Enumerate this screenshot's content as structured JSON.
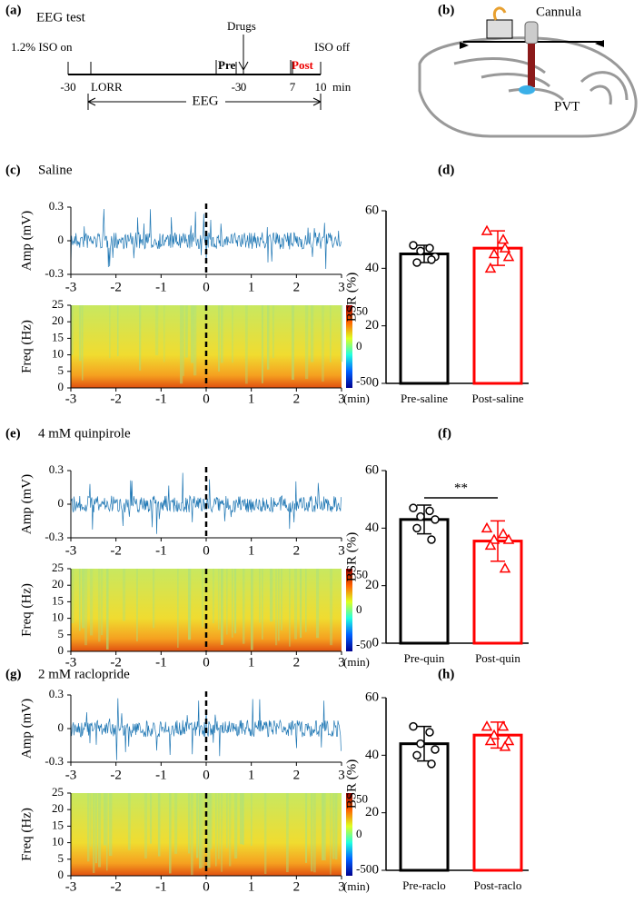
{
  "panel_a": {
    "label": "(a)",
    "title": "EEG test",
    "iso_on": "1.2% ISO on",
    "drugs": "Drugs",
    "pre": "Pre",
    "post": "Post",
    "iso_off": "ISO off",
    "ticks": [
      "-30",
      "LORR",
      "-3",
      "0",
      "7",
      "10"
    ],
    "unit": "min",
    "eeg": "EEG"
  },
  "panel_b": {
    "label": "(b)",
    "cannula": "Cannula",
    "pvt": "PVT"
  },
  "eeg_panels": [
    {
      "label": "(c)",
      "title": "Saline",
      "amp_label": "Amp (mV)",
      "ylim": [
        -0.3,
        0.3
      ],
      "amp_ticks": [
        0.3,
        0,
        -0.3
      ],
      "freq_label": "Freq (Hz)",
      "freq_lim": [
        0,
        25
      ],
      "freq_ticks": [
        0,
        5,
        10,
        15,
        20,
        25
      ],
      "color_ticks": [
        50,
        0,
        -50
      ],
      "xlim": [
        -3,
        3
      ],
      "time_ticks": [
        -3,
        -2,
        -1,
        0,
        1,
        2,
        3
      ],
      "time_unit": "(min)"
    },
    {
      "label": "(e)",
      "title": "4 mM quinpirole",
      "amp_label": "Amp (mV)",
      "ylim": [
        -0.3,
        0.3
      ],
      "amp_ticks": [
        0.3,
        0,
        -0.3
      ],
      "freq_label": "Freq (Hz)",
      "freq_lim": [
        0,
        25
      ],
      "freq_ticks": [
        0,
        5,
        10,
        15,
        20,
        25
      ],
      "color_ticks": [
        50,
        0,
        -50
      ],
      "xlim": [
        -3,
        3
      ],
      "time_ticks": [
        -3,
        -2,
        -1,
        0,
        1,
        2,
        3
      ],
      "time_unit": "(min)"
    },
    {
      "label": "(g)",
      "title": "2 mM raclopride",
      "amp_label": "Amp (mV)",
      "ylim": [
        -0.3,
        0.3
      ],
      "amp_ticks": [
        0.3,
        0,
        -0.3
      ],
      "freq_label": "Freq (Hz)",
      "freq_lim": [
        0,
        25
      ],
      "freq_ticks": [
        0,
        5,
        10,
        15,
        20,
        25
      ],
      "color_ticks": [
        50,
        0,
        -50
      ],
      "xlim": [
        -3,
        3
      ],
      "time_ticks": [
        -3,
        -2,
        -1,
        0,
        1,
        2,
        3
      ],
      "time_unit": "(min)"
    }
  ],
  "chart_data": [
    {
      "type": "bar",
      "label": "(d)",
      "ylabel": "BSR (%)",
      "categories": [
        "Pre-saline",
        "Post-saline"
      ],
      "values": [
        45,
        47
      ],
      "errors": [
        3,
        6
      ],
      "colors": [
        "#000000",
        "#ff0000"
      ],
      "points": [
        [
          48,
          47,
          46,
          44,
          42,
          43
        ],
        [
          53,
          50,
          45,
          44,
          40,
          47
        ]
      ],
      "ylim": [
        0,
        60
      ],
      "yticks": [
        0,
        20,
        40,
        60
      ]
    },
    {
      "type": "bar",
      "label": "(f)",
      "ylabel": "BSR (%)",
      "categories": [
        "Pre-quin",
        "Post-quin"
      ],
      "values": [
        43,
        35.5
      ],
      "errors": [
        5,
        7
      ],
      "colors": [
        "#000000",
        "#ff0000"
      ],
      "points": [
        [
          47,
          46,
          44,
          43,
          40,
          36
        ],
        [
          40,
          38,
          36,
          36,
          34,
          26
        ]
      ],
      "ylim": [
        0,
        60
      ],
      "yticks": [
        0,
        20,
        40,
        60
      ],
      "annotation": "**"
    },
    {
      "type": "bar",
      "label": "(h)",
      "ylabel": "BSR (%)",
      "categories": [
        "Pre-raclo",
        "Post-raclo"
      ],
      "values": [
        44,
        47
      ],
      "errors": [
        6,
        4.5
      ],
      "colors": [
        "#000000",
        "#ff0000"
      ],
      "points": [
        [
          50,
          48,
          44,
          42,
          40,
          37
        ],
        [
          50,
          50,
          47,
          45,
          45,
          43
        ]
      ],
      "ylim": [
        0,
        60
      ],
      "yticks": [
        0,
        20,
        40,
        60
      ]
    }
  ]
}
